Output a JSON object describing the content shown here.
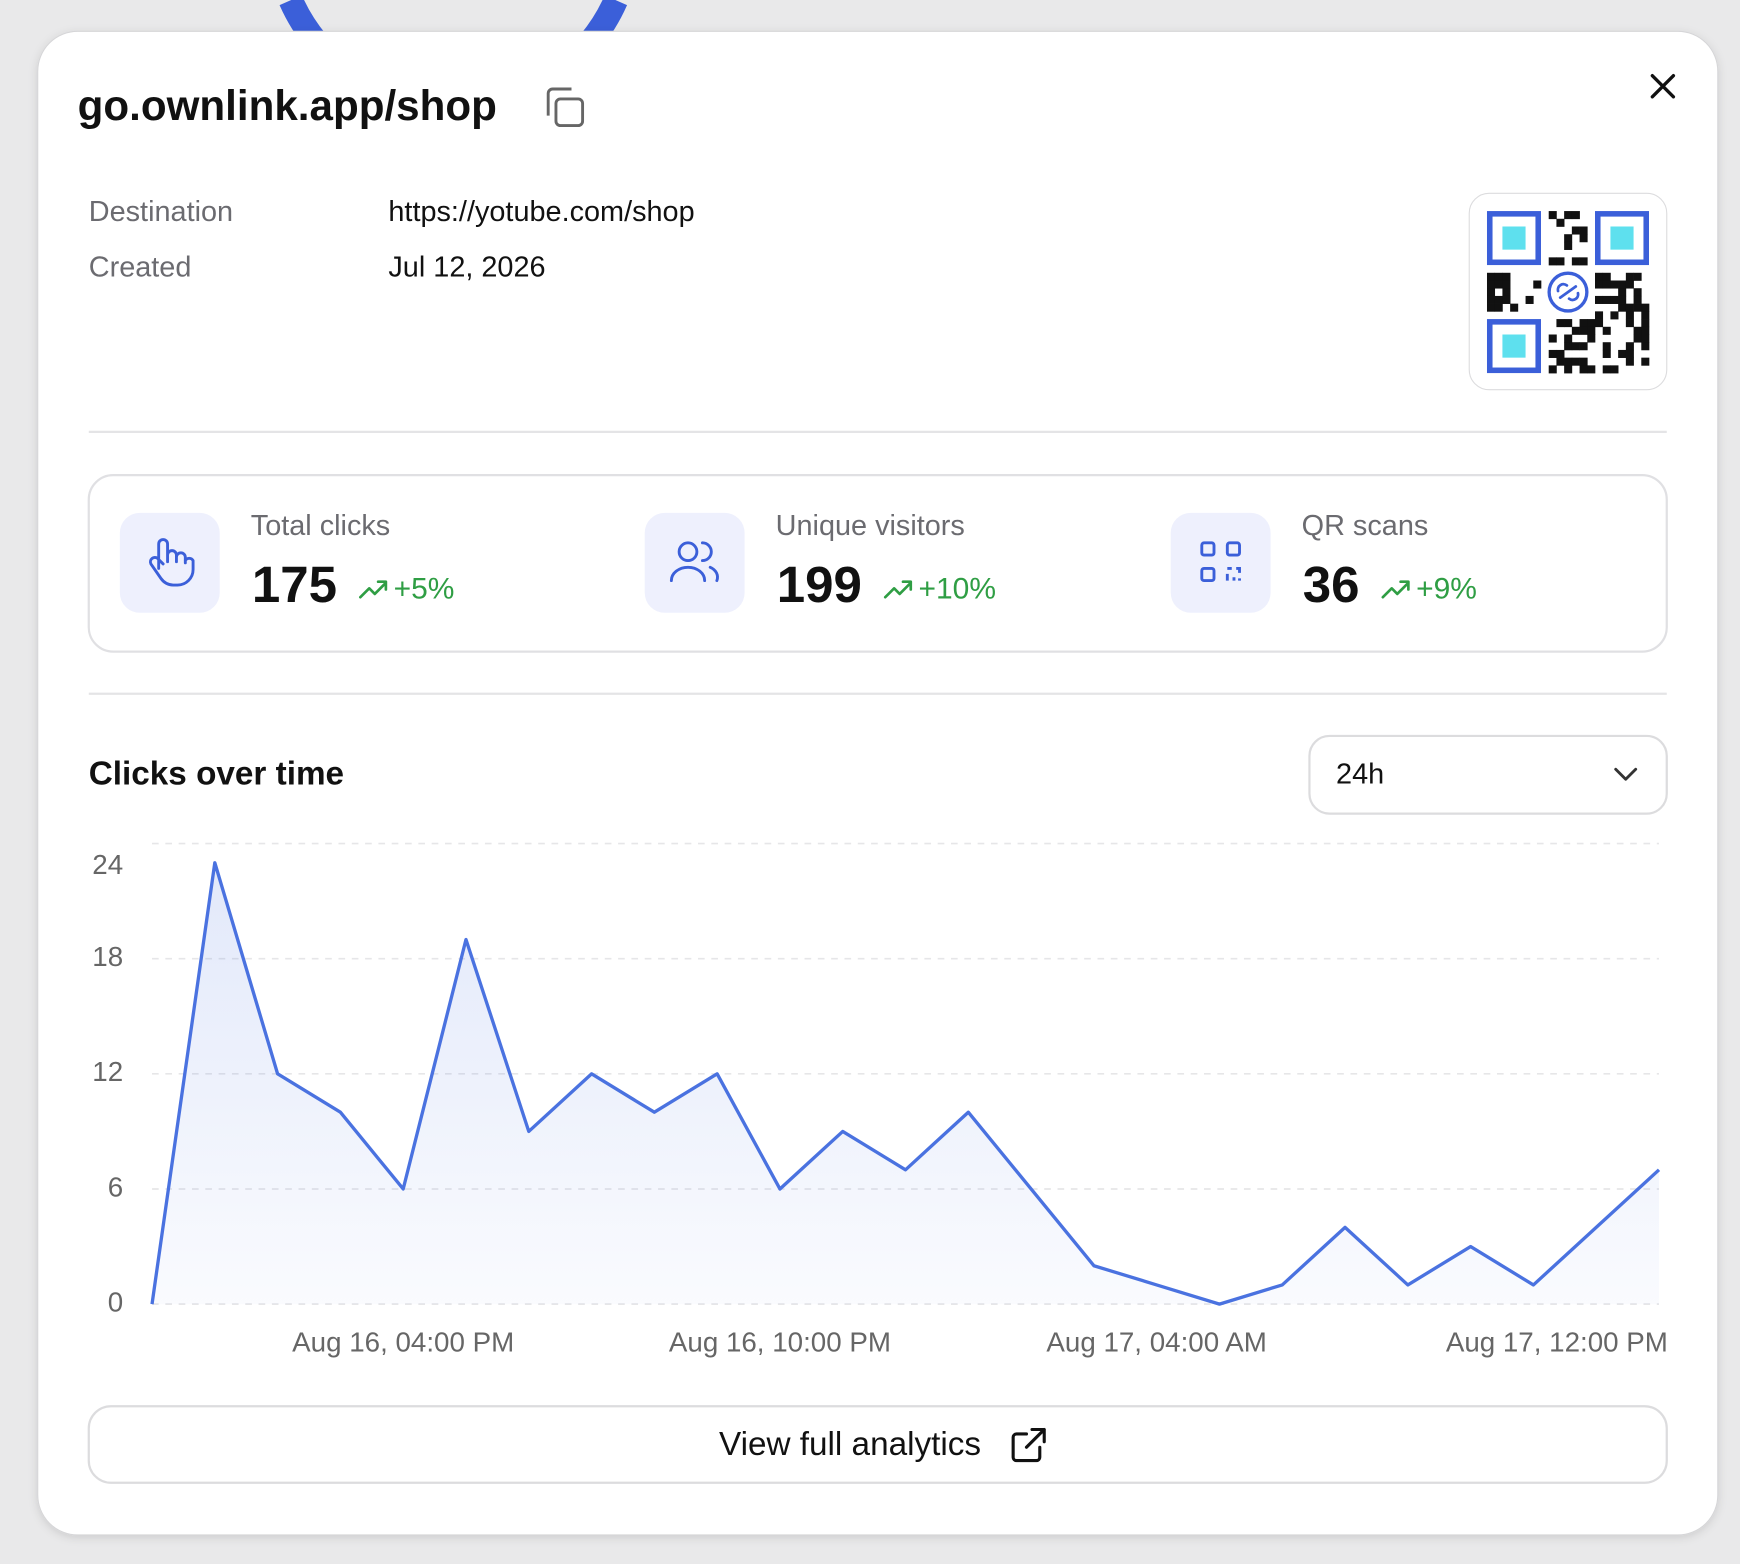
{
  "header": {
    "title": "go.ownlink.app/shop"
  },
  "details": {
    "rows": [
      [
        "Destination",
        "https://yotube.com/shop"
      ],
      [
        "Created",
        "Jul 12, 2026"
      ]
    ]
  },
  "stats": [
    {
      "label": "Total clicks",
      "value": 175,
      "change": "+5%"
    },
    {
      "label": "Unique visitors",
      "value": 199,
      "change": "+10%"
    },
    {
      "label": "QR scans",
      "value": 36,
      "change": "+9%"
    }
  ],
  "controls": {
    "range": "24h"
  },
  "chart_data": {
    "type": "line",
    "title": "Clicks over time",
    "categories": [
      null,
      null,
      null,
      null,
      "Aug 16, 04:00 PM",
      null,
      null,
      null,
      null,
      null,
      "Aug 16, 10:00 PM",
      null,
      null,
      null,
      null,
      null,
      "Aug 17, 04:00 AM",
      null,
      null,
      null,
      null,
      null,
      null,
      null,
      "Aug 17, 12:00 PM"
    ],
    "values": [
      0,
      23,
      12,
      10,
      6,
      19,
      9,
      12,
      10,
      12,
      6,
      9,
      7,
      10,
      6,
      2,
      1,
      0,
      1,
      4,
      1,
      3,
      1,
      4,
      7
    ],
    "color": "#4a72e0",
    "ylim": [
      0,
      24
    ],
    "yticks": [
      0,
      6,
      12,
      18,
      24
    ],
    "grid": true
  },
  "button": {
    "label": "View full analytics"
  }
}
